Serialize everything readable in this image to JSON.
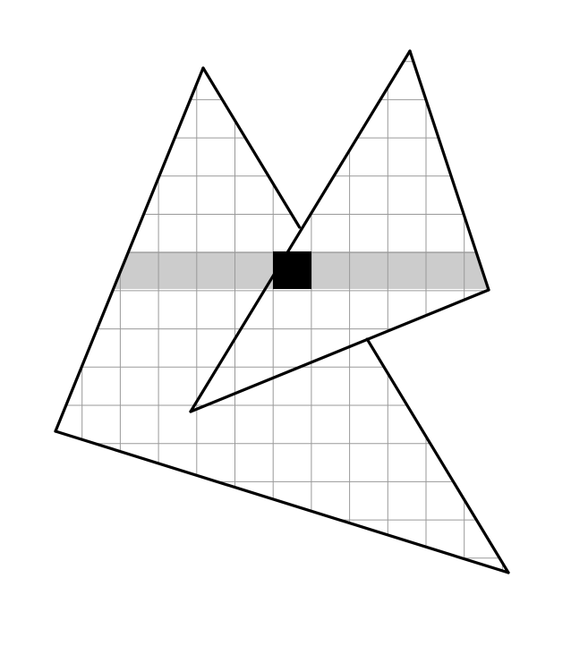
{
  "figure": {
    "description_visible_text": "",
    "colors": {
      "background": "#ffffff",
      "outline": "#000000",
      "grid": "#9a9a9a",
      "scanline_band": "#cccccc",
      "active_cell": "#000000"
    },
    "grid": {
      "shown": true,
      "cell_count_note": ""
    },
    "triangles": [
      {
        "name": "back-triangle"
      },
      {
        "name": "front-triangle"
      }
    ],
    "highlight": {
      "band": "scanline",
      "cell": "active-pixel"
    }
  }
}
